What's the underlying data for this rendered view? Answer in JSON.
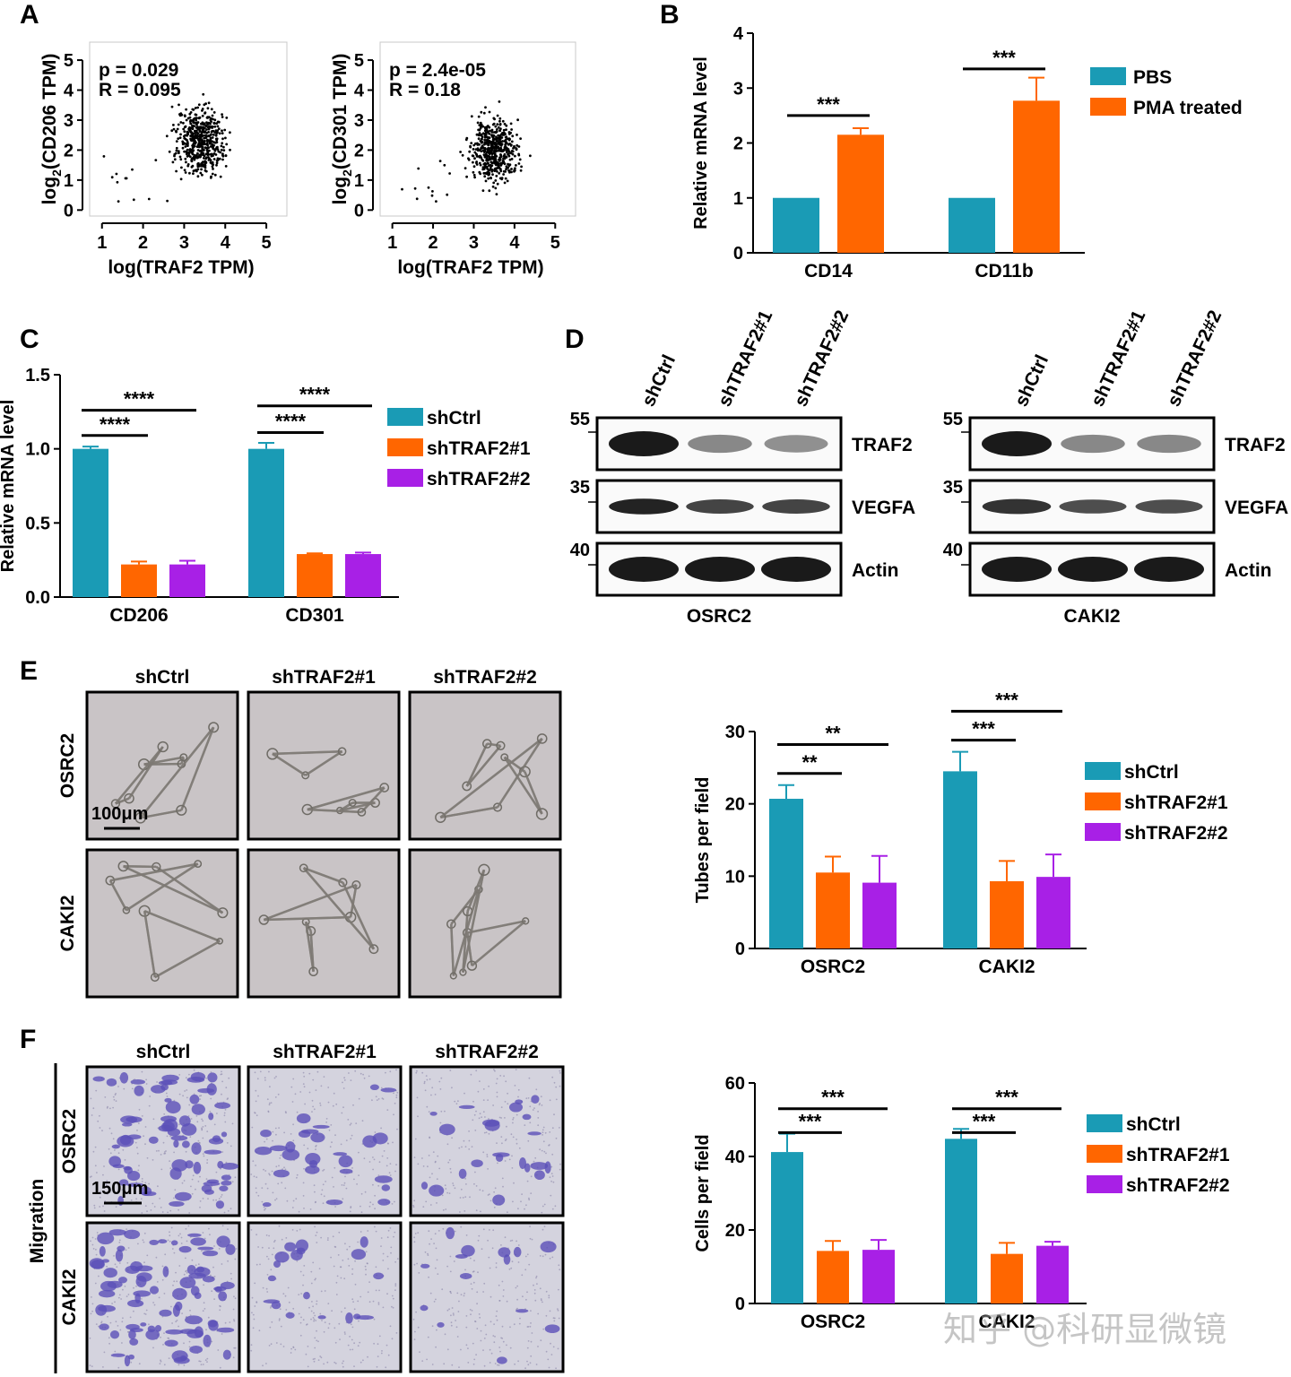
{
  "panels": {
    "A": "A",
    "B": "B",
    "C": "C",
    "D": "D",
    "E": "E",
    "F": "F"
  },
  "colors": {
    "teal": "#1a9bb5",
    "orange": "#ff6600",
    "purple": "#a820e6",
    "blot_band": "#1a1a1a",
    "micro_bg": "#c9c4c6",
    "stain": "#5b50b8",
    "sig_bar": "#000000"
  },
  "watermark": "知乎 @科研显微镜",
  "panel_A": {
    "plots": [
      {
        "ylabel_pre": "log",
        "ylabel_sub": "2",
        "ylabel_post": "(CD206 TPM)",
        "xlabel": "log(TRAF2 TPM)",
        "stat_p": "p = 0.029",
        "stat_r": "R = 0.095",
        "xticks": [
          "1",
          "2",
          "3",
          "4",
          "5"
        ],
        "yticks": [
          "0",
          "1",
          "2",
          "3",
          "4",
          "5"
        ],
        "x_range": [
          0.7,
          5.5
        ],
        "y_range": [
          -0.2,
          5.6
        ],
        "center_x": 3.4,
        "center_y": 2.3
      },
      {
        "ylabel_pre": "log",
        "ylabel_sub": "2",
        "ylabel_post": "(CD301 TPM)",
        "xlabel": "log(TRAF2 TPM)",
        "stat_p": "p = 2.4e-05",
        "stat_r": "R = 0.18",
        "xticks": [
          "1",
          "2",
          "3",
          "4",
          "5"
        ],
        "yticks": [
          "0",
          "1",
          "2",
          "3",
          "4",
          "5"
        ],
        "x_range": [
          0.7,
          5.5
        ],
        "y_range": [
          -0.2,
          5.6
        ],
        "center_x": 3.5,
        "center_y": 2.0
      }
    ]
  },
  "chart_data": [
    {
      "id": "B",
      "type": "bar",
      "ylabel": "Relative mRNA level",
      "categories": [
        "CD14",
        "CD11b"
      ],
      "ylim": [
        0,
        4
      ],
      "yticks": [
        "0",
        "1",
        "2",
        "3",
        "4"
      ],
      "series": [
        {
          "name": "PBS",
          "values": [
            1.0,
            1.0
          ],
          "errors": [
            0,
            0
          ]
        },
        {
          "name": "PMA treated",
          "values": [
            2.15,
            2.77
          ],
          "errors": [
            0.12,
            0.42
          ]
        }
      ],
      "significance": [
        {
          "category": 0,
          "from": 0,
          "to": 1,
          "label": "***",
          "y": 2.5
        },
        {
          "category": 1,
          "from": 0,
          "to": 1,
          "label": "***",
          "y": 3.35
        }
      ],
      "legend": "right"
    },
    {
      "id": "C",
      "type": "bar",
      "ylabel": "Relative mRNA level",
      "categories": [
        "CD206",
        "CD301"
      ],
      "ylim": [
        0,
        1.5
      ],
      "yticks": [
        "0.0",
        "0.5",
        "1.0",
        "1.5"
      ],
      "series": [
        {
          "name": "shCtrl",
          "values": [
            1.0,
            1.0
          ],
          "errors": [
            0.015,
            0.04
          ]
        },
        {
          "name": "shTRAF2#1",
          "values": [
            0.22,
            0.29
          ],
          "errors": [
            0.02,
            0.005
          ]
        },
        {
          "name": "shTRAF2#2",
          "values": [
            0.22,
            0.29
          ],
          "errors": [
            0.025,
            0.01
          ]
        }
      ],
      "significance": [
        {
          "category": 0,
          "from": 0,
          "to": 1,
          "label": "****",
          "y": 1.09
        },
        {
          "category": 0,
          "from": 0,
          "to": 2,
          "label": "****",
          "y": 1.26
        },
        {
          "category": 1,
          "from": 0,
          "to": 1,
          "label": "****",
          "y": 1.11
        },
        {
          "category": 1,
          "from": 0,
          "to": 2,
          "label": "****",
          "y": 1.29
        }
      ],
      "legend": "right"
    },
    {
      "id": "E",
      "type": "bar",
      "ylabel": "Tubes per field",
      "categories": [
        "OSRC2",
        "CAKI2"
      ],
      "ylim": [
        0,
        30
      ],
      "yticks": [
        "0",
        "10",
        "20",
        "30"
      ],
      "series": [
        {
          "name": "shCtrl",
          "values": [
            20.7,
            24.5
          ],
          "errors": [
            1.9,
            2.7
          ]
        },
        {
          "name": "shTRAF2#1",
          "values": [
            10.5,
            9.3
          ],
          "errors": [
            2.2,
            2.8
          ]
        },
        {
          "name": "shTRAF2#2",
          "values": [
            9.1,
            9.9
          ],
          "errors": [
            3.7,
            3.1
          ]
        }
      ],
      "significance": [
        {
          "category": 0,
          "from": 0,
          "to": 1,
          "label": "**",
          "y": 24.2
        },
        {
          "category": 0,
          "from": 0,
          "to": 2,
          "label": "**",
          "y": 28.2
        },
        {
          "category": 1,
          "from": 0,
          "to": 1,
          "label": "***",
          "y": 28.8
        },
        {
          "category": 1,
          "from": 0,
          "to": 2,
          "label": "***",
          "y": 32.8
        }
      ],
      "legend": "right"
    },
    {
      "id": "F",
      "type": "bar",
      "ylabel": "Cells per field",
      "categories": [
        "OSRC2",
        "CAKI2"
      ],
      "ylim": [
        0,
        60
      ],
      "yticks": [
        "0",
        "20",
        "40",
        "60"
      ],
      "series": [
        {
          "name": "shCtrl",
          "values": [
            41.2,
            44.8
          ],
          "errors": [
            5.0,
            2.7
          ]
        },
        {
          "name": "shTRAF2#1",
          "values": [
            14.3,
            13.5
          ],
          "errors": [
            2.7,
            3.0
          ]
        },
        {
          "name": "shTRAF2#2",
          "values": [
            14.6,
            15.7
          ],
          "errors": [
            2.7,
            1.1
          ]
        }
      ],
      "significance": [
        {
          "category": 0,
          "from": 0,
          "to": 1,
          "label": "***",
          "y": 46.5
        },
        {
          "category": 0,
          "from": 0,
          "to": 2,
          "label": "***",
          "y": 53.0
        },
        {
          "category": 1,
          "from": 0,
          "to": 1,
          "label": "***",
          "y": 46.5
        },
        {
          "category": 1,
          "from": 0,
          "to": 2,
          "label": "***",
          "y": 53.0
        }
      ],
      "legend": "right"
    }
  ],
  "panel_D": {
    "blots": [
      {
        "cell_line": "OSRC2",
        "lanes": [
          "shCtrl",
          "shTRAF2#1",
          "shTRAF2#2"
        ],
        "rows": [
          {
            "protein": "TRAF2",
            "marker": "55",
            "intensity": [
              1.0,
              0.35,
              0.3
            ]
          },
          {
            "protein": "VEGFA",
            "marker": "35",
            "intensity": [
              0.95,
              0.75,
              0.75
            ]
          },
          {
            "protein": "Actin",
            "marker": "40",
            "intensity": [
              1.0,
              1.0,
              1.0
            ]
          }
        ]
      },
      {
        "cell_line": "CAKI2",
        "lanes": [
          "shCtrl",
          "shTRAF2#1",
          "shTRAF2#2"
        ],
        "rows": [
          {
            "protein": "TRAF2",
            "marker": "55",
            "intensity": [
              1.0,
              0.35,
              0.35
            ]
          },
          {
            "protein": "VEGFA",
            "marker": "35",
            "intensity": [
              0.85,
              0.7,
              0.7
            ]
          },
          {
            "protein": "Actin",
            "marker": "40",
            "intensity": [
              1.0,
              1.0,
              1.0
            ]
          }
        ]
      }
    ]
  },
  "panel_E_images": {
    "columns": [
      "shCtrl",
      "shTRAF2#1",
      "shTRAF2#2"
    ],
    "rows": [
      "OSRC2",
      "CAKI2"
    ],
    "scale_bar": "100μm"
  },
  "panel_F_images": {
    "columns": [
      "shCtrl",
      "shTRAF2#1",
      "shTRAF2#2"
    ],
    "rows": [
      "OSRC2",
      "CAKI2"
    ],
    "group_label": "Migration",
    "scale_bar": "150μm"
  }
}
